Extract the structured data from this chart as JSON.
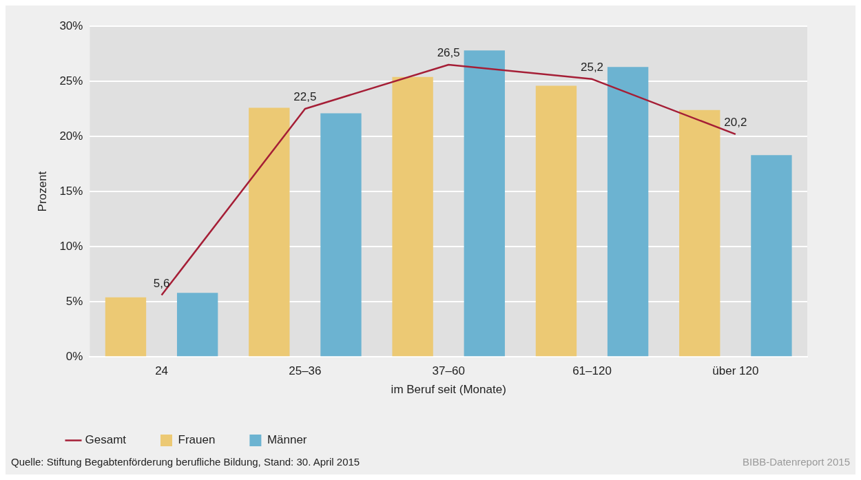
{
  "chart_data": {
    "type": "bar",
    "xlabel": "im Beruf seit (Monate)",
    "ylabel": "Prozent",
    "categories": [
      "24",
      "25–36",
      "37–60",
      "61–120",
      "über 120"
    ],
    "series": [
      {
        "name": "Frauen",
        "color": "#ecc974",
        "values": [
          5.4,
          22.6,
          25.4,
          24.6,
          22.4
        ]
      },
      {
        "name": "Männer",
        "color": "#6cb3d1",
        "values": [
          5.8,
          22.1,
          27.8,
          26.3,
          18.3
        ]
      },
      {
        "name": "Gesamt",
        "type": "line",
        "color": "#a51e36",
        "values": [
          5.6,
          22.5,
          26.5,
          25.2,
          20.2
        ],
        "value_labels": [
          "5,6",
          "22,5",
          "26,5",
          "25,2",
          "20,2"
        ]
      }
    ],
    "ylim": [
      0,
      30
    ],
    "yticks": [
      {
        "value": 0,
        "label": "0%"
      },
      {
        "value": 5,
        "label": "5%"
      },
      {
        "value": 10,
        "label": "10%"
      },
      {
        "value": 15,
        "label": "15%"
      },
      {
        "value": 20,
        "label": "20%"
      },
      {
        "value": 25,
        "label": "25%"
      },
      {
        "value": 30,
        "label": "30%"
      }
    ],
    "grid": "y",
    "legend": "bottom left",
    "marker": "none",
    "annotations": [
      "Quelle: Stiftung Begabtenförderung berufliche Bildung, Stand: 30. April 2015",
      "BIBB-Datenreport 2015"
    ]
  }
}
